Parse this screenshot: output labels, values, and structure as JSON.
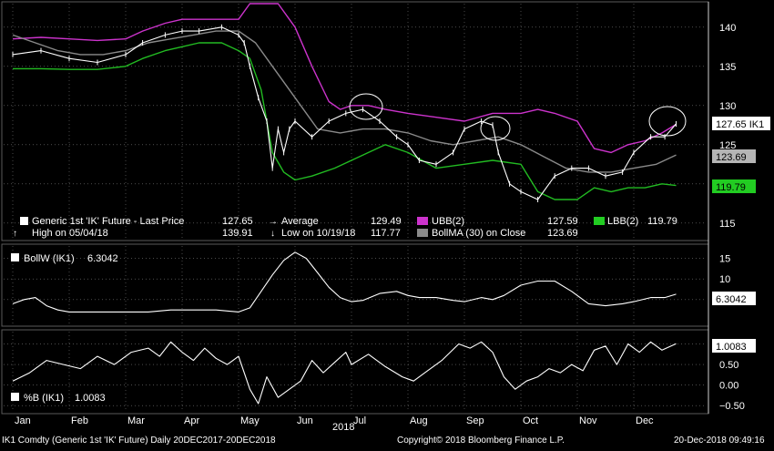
{
  "colors": {
    "background": "#000000",
    "price": "#ffffff",
    "ubb": "#cc33cc",
    "lbb": "#22bb22",
    "bollma": "#8a8a8a",
    "axis_tag_white_bg": "#ffffff",
    "axis_tag_grey_bg": "#b5b5b5",
    "axis_tag_green_bg": "#22cc22",
    "grid": "#7a7a7a"
  },
  "top_legend": {
    "last_price_label": "Generic 1st 'IK' Future - Last Price",
    "last_price_value": "127.65",
    "high_label": "High on 05/04/18",
    "high_value": "139.91",
    "average_label": "Average",
    "average_value": "129.49",
    "low_label": "Low on 10/19/18",
    "low_value": "117.77",
    "ubb_label": "UBB(2)",
    "ubb_value": "127.59",
    "lbb_label": "LBB(2)",
    "lbb_value": "119.79",
    "bollma_label": "BollMA (30)  on Close",
    "bollma_value": "123.69"
  },
  "mid_legend": {
    "label": "BollW (IK1)",
    "value": "6.3042"
  },
  "bot_legend": {
    "label": "%B (IK1)",
    "value": "1.0083"
  },
  "price_tags": {
    "last": "127.65 IK1",
    "bollma": "123.69",
    "lbb": "119.79"
  },
  "mid_tag": "6.3042",
  "bot_tag": "1.0083",
  "year_label": "2018",
  "footer": {
    "ticker": "IK1 Comdty (Generic 1st 'IK' Future)  Daily 20DEC2017-20DEC2018",
    "copyright": "Copyright© 2018 Bloomberg Finance L.P.",
    "timestamp": "20-Dec-2018 09:49:16"
  },
  "chart_data": [
    {
      "type": "line",
      "panel": "price",
      "ylim": [
        113,
        143
      ],
      "yticks": [
        115,
        120,
        125,
        130,
        135,
        140
      ],
      "x_months": [
        "Jan",
        "Feb",
        "Mar",
        "Apr",
        "May",
        "Jun",
        "Jul",
        "Aug",
        "Sep",
        "Oct",
        "Nov",
        "Dec"
      ],
      "x_range": [
        0,
        12.1
      ],
      "series": [
        {
          "name": "Generic 1st 'IK' Future - Last Price",
          "x": [
            0,
            0.5,
            1,
            1.5,
            2,
            2.3,
            2.7,
            3,
            3.3,
            3.7,
            4,
            4.1,
            4.2,
            4.35,
            4.5,
            4.6,
            4.7,
            4.8,
            4.9,
            5,
            5.3,
            5.6,
            5.9,
            6.2,
            6.5,
            6.8,
            7,
            7.2,
            7.5,
            7.8,
            8,
            8.3,
            8.5,
            8.6,
            8.8,
            9,
            9.3,
            9.6,
            9.9,
            10.2,
            10.5,
            10.8,
            11,
            11.3,
            11.55,
            11.75
          ],
          "y": [
            136.5,
            137,
            136,
            135.5,
            136.5,
            138,
            139,
            139.5,
            139.5,
            140,
            139,
            138,
            135,
            131,
            128,
            122,
            127,
            124,
            127,
            128,
            126,
            128,
            129,
            129.5,
            128,
            126,
            125,
            123,
            122.5,
            124,
            127,
            128,
            127.5,
            124,
            120,
            119,
            118,
            121,
            122,
            122,
            121,
            121.5,
            124,
            126,
            126,
            127.65
          ]
        },
        {
          "name": "UBB(2)",
          "x": [
            0,
            0.5,
            1,
            1.5,
            2,
            2.3,
            2.7,
            3,
            3.3,
            3.7,
            4,
            4.2,
            4.4,
            4.7,
            5,
            5.3,
            5.6,
            5.8,
            6,
            6.3,
            6.6,
            7,
            7.5,
            8,
            8.5,
            9,
            9.3,
            9.6,
            10,
            10.3,
            10.6,
            10.9,
            11.2,
            11.5,
            11.75
          ],
          "y": [
            138.5,
            138.7,
            138.5,
            138.3,
            138.5,
            139.5,
            140.5,
            141,
            141,
            141,
            141,
            143,
            143,
            143,
            140,
            135,
            130.5,
            129.5,
            130,
            130,
            129.5,
            129,
            128.5,
            128,
            129,
            129,
            129.5,
            129,
            128,
            124.5,
            124,
            125,
            125.5,
            126.5,
            127.59
          ]
        },
        {
          "name": "LBB(2)",
          "x": [
            0,
            0.5,
            1,
            1.5,
            2,
            2.3,
            2.7,
            3,
            3.3,
            3.5,
            3.7,
            4,
            4.2,
            4.4,
            4.6,
            4.8,
            5,
            5.3,
            5.7,
            6,
            6.3,
            6.6,
            7,
            7.5,
            8,
            8.5,
            9,
            9.3,
            9.6,
            10,
            10.3,
            10.6,
            10.9,
            11.2,
            11.5,
            11.75
          ],
          "y": [
            134.7,
            134.7,
            134.6,
            134.6,
            135,
            136,
            137,
            137.5,
            138,
            138,
            138,
            137,
            136,
            132,
            124,
            121.5,
            120.5,
            121,
            122,
            123,
            124,
            125,
            124,
            122,
            122.5,
            123,
            122.5,
            119,
            118,
            118,
            119.5,
            119,
            119.5,
            119.5,
            120,
            119.79
          ]
        },
        {
          "name": "BollMA (30)  on Close",
          "x": [
            0,
            0.4,
            0.8,
            1.2,
            1.6,
            2,
            2.4,
            2.8,
            3.2,
            3.6,
            4,
            4.3,
            4.6,
            5,
            5.4,
            5.8,
            6.2,
            6.6,
            7,
            7.4,
            7.8,
            8.2,
            8.6,
            9,
            9.4,
            9.8,
            10.2,
            10.6,
            11,
            11.4,
            11.75
          ],
          "y": [
            139,
            138,
            137,
            136.5,
            136.5,
            137,
            138,
            138.5,
            139,
            139.5,
            139.5,
            138,
            135,
            131,
            127,
            126.5,
            127,
            127,
            126.5,
            125.5,
            125,
            125.5,
            126,
            125,
            123.5,
            122,
            121.5,
            121.5,
            122,
            122.5,
            123.69
          ]
        }
      ]
    },
    {
      "type": "line",
      "panel": "bollw",
      "ylim": [
        -1,
        18
      ],
      "yticks": [
        5,
        10,
        15
      ],
      "series": [
        {
          "name": "BollW (IK1)",
          "x": [
            0,
            0.2,
            0.4,
            0.6,
            0.8,
            1,
            1.2,
            1.5,
            2,
            2.4,
            2.8,
            3.2,
            3.6,
            4,
            4.2,
            4.4,
            4.6,
            4.8,
            5,
            5.2,
            5.4,
            5.6,
            5.8,
            6,
            6.2,
            6.5,
            6.8,
            7,
            7.2,
            7.5,
            7.8,
            8,
            8.3,
            8.5,
            8.7,
            9,
            9.3,
            9.6,
            9.9,
            10.2,
            10.5,
            10.8,
            11,
            11.3,
            11.55,
            11.75
          ],
          "y": [
            4,
            5,
            5.5,
            3.5,
            2.5,
            2,
            2,
            2,
            2,
            2,
            2.5,
            2.5,
            2.5,
            2,
            3,
            7,
            11,
            14.5,
            16.5,
            15,
            11.5,
            8,
            5.5,
            4.5,
            4.8,
            6.5,
            7,
            6,
            5.5,
            5.5,
            4.8,
            4.5,
            5.5,
            5,
            6,
            8.5,
            9.5,
            9.5,
            7,
            4,
            3.5,
            4,
            4.5,
            5.5,
            5.5,
            6.3042
          ]
        }
      ]
    },
    {
      "type": "line",
      "panel": "percent_b",
      "ylim": [
        -0.65,
        1.3
      ],
      "yticks": [
        -0.5,
        0,
        0.5,
        1
      ],
      "series": [
        {
          "name": "%B (IK1)",
          "x": [
            0,
            0.3,
            0.6,
            0.9,
            1.2,
            1.5,
            1.8,
            2.1,
            2.4,
            2.6,
            2.8,
            3,
            3.2,
            3.4,
            3.6,
            3.8,
            4,
            4.1,
            4.2,
            4.35,
            4.5,
            4.7,
            4.9,
            5.1,
            5.3,
            5.5,
            5.7,
            5.9,
            6,
            6.3,
            6.6,
            6.9,
            7.1,
            7.3,
            7.6,
            7.9,
            8.1,
            8.3,
            8.5,
            8.7,
            8.9,
            9.1,
            9.3,
            9.5,
            9.7,
            9.9,
            10.1,
            10.3,
            10.5,
            10.7,
            10.9,
            11.1,
            11.3,
            11.5,
            11.75
          ],
          "y": [
            0.1,
            0.3,
            0.6,
            0.5,
            0.4,
            0.7,
            0.5,
            0.8,
            0.9,
            0.7,
            1.05,
            0.8,
            0.6,
            0.9,
            0.65,
            0.5,
            0.7,
            0.3,
            -0.1,
            -0.45,
            0.2,
            -0.3,
            -0.1,
            0.1,
            0.6,
            0.3,
            0.55,
            0.8,
            0.5,
            0.75,
            0.45,
            0.2,
            0.1,
            0.3,
            0.6,
            1.0,
            0.9,
            1.05,
            0.8,
            0.2,
            -0.1,
            0.1,
            0.2,
            0.4,
            0.3,
            0.5,
            0.35,
            0.85,
            0.95,
            0.5,
            1.0,
            0.8,
            1.05,
            0.85,
            1.0083
          ]
        }
      ]
    }
  ]
}
